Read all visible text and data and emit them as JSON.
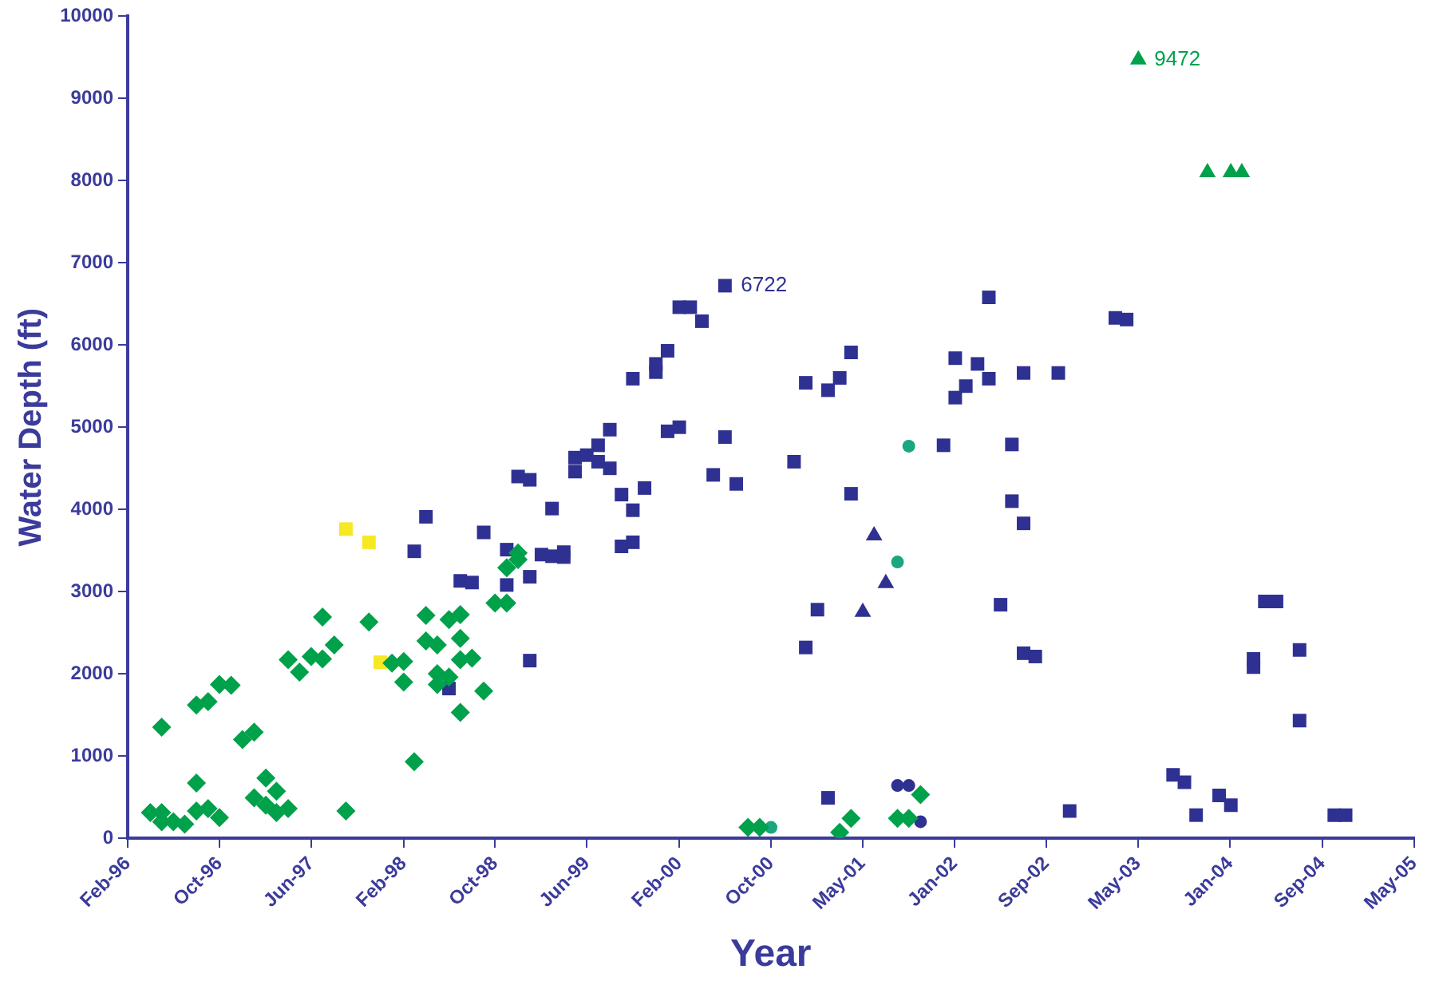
{
  "chart_data": {
    "type": "scatter",
    "xlabel": "Year",
    "ylabel": "Water Depth (ft)",
    "grid": false,
    "legend": false,
    "xlim": [
      "1996-02-01",
      "2005-05-31"
    ],
    "xticks": [
      {
        "value": "1996-02-01",
        "label": "Feb-96"
      },
      {
        "value": "1996-10-01",
        "label": "Oct-96"
      },
      {
        "value": "1997-06-01",
        "label": "Jun-97"
      },
      {
        "value": "1998-02-01",
        "label": "Feb-98"
      },
      {
        "value": "1998-10-01",
        "label": "Oct-98"
      },
      {
        "value": "1999-06-01",
        "label": "Jun-99"
      },
      {
        "value": "2000-02-01",
        "label": "Feb-00"
      },
      {
        "value": "2000-10-01",
        "label": "Oct-00"
      },
      {
        "value": "2001-05-31",
        "label": "May-01"
      },
      {
        "value": "2002-01-30",
        "label": "Jan-02"
      },
      {
        "value": "2002-09-30",
        "label": "Sep-02"
      },
      {
        "value": "2003-05-31",
        "label": "May-03"
      },
      {
        "value": "2004-01-30",
        "label": "Jan-04"
      },
      {
        "value": "2004-09-30",
        "label": "Sep-04"
      },
      {
        "value": "2005-05-31",
        "label": "May-05"
      }
    ],
    "ylim": [
      0,
      10000
    ],
    "yticks": [
      0,
      1000,
      2000,
      3000,
      4000,
      5000,
      6000,
      7000,
      8000,
      9000,
      10000
    ],
    "annotations": [
      {
        "text": "9472",
        "x": "2003-06",
        "y": 9472
      },
      {
        "text": "6722",
        "x": "2000-06",
        "y": 6722
      }
    ],
    "series": [
      {
        "color": "#00a14b",
        "marker": "diamond",
        "x": [
          "1996-04",
          "1996-05",
          "1996-05",
          "1996-05",
          "1996-06",
          "1996-07",
          "1996-08",
          "1996-08",
          "1996-08",
          "1996-09",
          "1996-09",
          "1996-10",
          "1996-10",
          "1996-11",
          "1996-12",
          "1997-01",
          "1997-01",
          "1997-02",
          "1997-02",
          "1997-03",
          "1997-03",
          "1997-04",
          "1997-04",
          "1997-05",
          "1997-06",
          "1997-07",
          "1997-07",
          "1997-08",
          "1997-09",
          "1997-11",
          "1998-01",
          "1998-02",
          "1998-02",
          "1998-03",
          "1998-04",
          "1998-04",
          "1998-05",
          "1998-05",
          "1998-05",
          "1998-06",
          "1998-06",
          "1998-07",
          "1998-07",
          "1998-07",
          "1998-07",
          "1998-08",
          "1998-09",
          "1998-10",
          "1998-11",
          "1998-11",
          "1998-12",
          "1998-12",
          "2000-08",
          "2000-09",
          "2001-04",
          "2001-05",
          "2001-09",
          "2001-10",
          "2001-11"
        ],
        "values": [
          310,
          310,
          1350,
          200,
          200,
          170,
          670,
          330,
          1620,
          1660,
          360,
          250,
          1870,
          1860,
          1200,
          1290,
          490,
          400,
          730,
          310,
          570,
          360,
          2170,
          2020,
          2210,
          2180,
          2690,
          2350,
          330,
          2630,
          2130,
          2150,
          1900,
          930,
          2710,
          2400,
          2350,
          2000,
          1870,
          1960,
          2660,
          2720,
          1530,
          2430,
          2170,
          2190,
          1790,
          2860,
          2860,
          3290,
          3390,
          3470,
          130,
          130,
          70,
          240,
          240,
          240,
          530
        ]
      },
      {
        "color": "#00a14b",
        "marker": "triangle",
        "x": [
          "2003-06",
          "2003-12",
          "2004-02",
          "2004-03"
        ],
        "values": [
          9472,
          8100,
          8100,
          8100
        ]
      },
      {
        "color": "#1aa67e",
        "marker": "circle",
        "x": [
          "2000-10",
          "2001-09",
          "2001-10"
        ],
        "values": [
          130,
          3360,
          4770
        ]
      },
      {
        "color": "#f7e824",
        "marker": "square",
        "x": [
          "1997-09",
          "1997-11",
          "1997-12"
        ],
        "values": [
          3760,
          3600,
          2140
        ]
      },
      {
        "color": "#2e3192",
        "marker": "square",
        "x": [
          "1998-03",
          "1998-04",
          "1998-06",
          "1998-07",
          "1998-08",
          "1998-09",
          "1998-11",
          "1998-11",
          "1998-12",
          "1999-01",
          "1999-01",
          "1999-01",
          "1999-02",
          "1999-03",
          "1999-03",
          "1999-04",
          "1999-04",
          "1999-05",
          "1999-05",
          "1999-06",
          "1999-07",
          "1999-07",
          "1999-08",
          "1999-08",
          "1999-09",
          "1999-09",
          "1999-10",
          "1999-10",
          "1999-10",
          "1999-11",
          "1999-12",
          "1999-12",
          "2000-01",
          "2000-01",
          "2000-02",
          "2000-02",
          "2000-03",
          "2000-04",
          "2000-05",
          "2000-06",
          "2000-06",
          "2000-07",
          "2000-12",
          "2001-01",
          "2001-01",
          "2001-02",
          "2001-03",
          "2001-03",
          "2001-04",
          "2001-05",
          "2001-05",
          "2002-01",
          "2002-02",
          "2002-02",
          "2002-03",
          "2002-04",
          "2002-05",
          "2002-05",
          "2002-06",
          "2002-07",
          "2002-07",
          "2002-08",
          "2002-08",
          "2002-08",
          "2002-09",
          "2002-11",
          "2002-12",
          "2003-04",
          "2003-05",
          "2003-09",
          "2003-10",
          "2003-11",
          "2004-01",
          "2004-02",
          "2004-04",
          "2004-04",
          "2004-05",
          "2004-06",
          "2004-08",
          "2004-08",
          "2004-11",
          "2004-12"
        ],
        "values": [
          3490,
          3910,
          1820,
          3130,
          3110,
          3720,
          3080,
          3510,
          4400,
          3180,
          2160,
          4360,
          3450,
          3430,
          4010,
          3480,
          3420,
          4630,
          4460,
          4660,
          4580,
          4780,
          4500,
          4970,
          3550,
          4180,
          5590,
          3990,
          3600,
          4260,
          5670,
          5770,
          5930,
          4950,
          6460,
          5000,
          6460,
          6290,
          4420,
          6722,
          4880,
          4310,
          4580,
          5540,
          2320,
          2780,
          5450,
          490,
          5600,
          5910,
          4190,
          4780,
          5840,
          5360,
          5500,
          5770,
          5590,
          6580,
          2840,
          4790,
          4100,
          3830,
          2250,
          5660,
          2210,
          5660,
          330,
          6330,
          6310,
          770,
          680,
          280,
          520,
          400,
          2180,
          2080,
          2880,
          2880,
          2290,
          1430,
          280,
          280
        ]
      },
      {
        "color": "#2e3192",
        "marker": "triangle",
        "x": [
          "2001-06",
          "2001-07",
          "2001-08"
        ],
        "values": [
          2750,
          3680,
          3100
        ]
      },
      {
        "color": "#2e3192",
        "marker": "circle",
        "x": [
          "2001-09",
          "2001-10",
          "2001-11"
        ],
        "values": [
          640,
          640,
          200
        ]
      }
    ]
  }
}
